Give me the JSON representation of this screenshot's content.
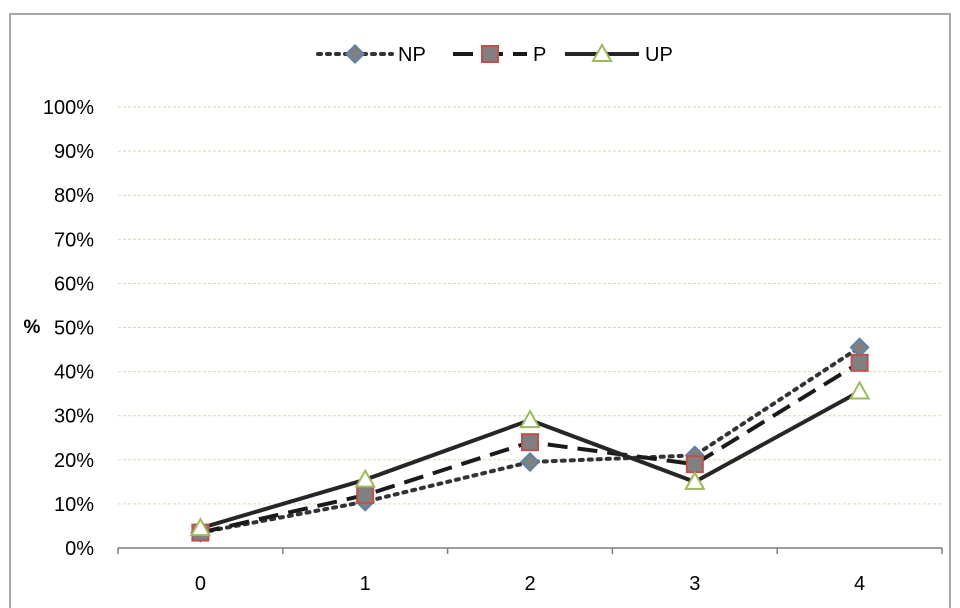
{
  "chart_data": {
    "type": "line",
    "title": "",
    "xlabel": "",
    "ylabel": "%",
    "categories": [
      "0",
      "1",
      "2",
      "3",
      "4"
    ],
    "y_ticks": [
      "0%",
      "10%",
      "20%",
      "30%",
      "40%",
      "50%",
      "60%",
      "70%",
      "80%",
      "90%",
      "100%"
    ],
    "ylim": [
      0,
      100
    ],
    "grid": true,
    "legend_position": "top",
    "series": [
      {
        "name": "NP",
        "values": [
          3.5,
          10.5,
          19.5,
          21,
          45.5
        ],
        "line_style": "dotted",
        "line_color": "#333333",
        "marker": "diamond",
        "marker_fill": "#808080",
        "marker_stroke": "#4f81bd"
      },
      {
        "name": "P",
        "values": [
          3.5,
          12,
          24,
          19,
          42
        ],
        "line_style": "dashed",
        "line_color": "#1a1a1a",
        "marker": "square",
        "marker_fill": "#808080",
        "marker_stroke": "#c0504d"
      },
      {
        "name": "UP",
        "values": [
          4.5,
          15.5,
          29,
          15,
          35.5
        ],
        "line_style": "solid",
        "line_color": "#262626",
        "marker": "triangle",
        "marker_fill": "#ffffff",
        "marker_stroke": "#9bbb59"
      }
    ]
  }
}
